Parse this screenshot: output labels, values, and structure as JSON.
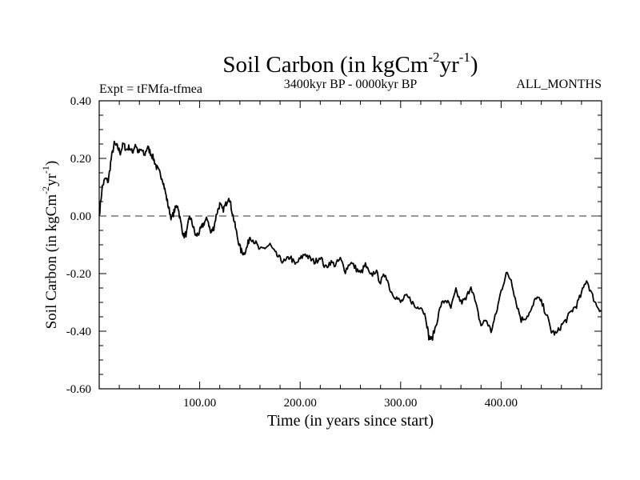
{
  "chart_data": {
    "type": "line",
    "title_main": "Soil Carbon (in kgCm",
    "title_exp1": "-2",
    "title_mid": "yr",
    "title_exp2": "-1",
    "title_end": ")",
    "subtitle_left": "Expt = tFMfa-tfmea",
    "subtitle_center": "3400kyr BP - 0000kyr BP",
    "subtitle_right": "ALL_MONTHS",
    "xlabel": "Time (in years since start)",
    "ylabel_main": "Soil Carbon (in kgCm",
    "ylabel_exp1": "-2",
    "ylabel_mid": "yr",
    "ylabel_exp2": "-1",
    "ylabel_end": ")",
    "xlim": [
      0,
      500
    ],
    "ylim": [
      -0.6,
      0.4
    ],
    "xticks": [
      100,
      200,
      300,
      400
    ],
    "xtick_labels": [
      "100.00",
      "200.00",
      "300.00",
      "400.00"
    ],
    "yticks": [
      0.4,
      0.2,
      0.0,
      -0.2,
      -0.4,
      -0.6
    ],
    "ytick_labels": [
      "0.40",
      "0.20",
      "0.00",
      "-0.20",
      "-0.40",
      "-0.60"
    ],
    "reference_line": 0.0,
    "series": [
      {
        "name": "Soil Carbon",
        "color": "#000000",
        "x": [
          0,
          3,
          6,
          9,
          12,
          15,
          18,
          21,
          24,
          27,
          30,
          33,
          36,
          39,
          42,
          45,
          48,
          51,
          54,
          57,
          60,
          63,
          66,
          69,
          72,
          75,
          78,
          81,
          84,
          87,
          90,
          93,
          96,
          99,
          102,
          105,
          108,
          111,
          114,
          117,
          120,
          123,
          126,
          129,
          132,
          135,
          138,
          141,
          144,
          147,
          150,
          155,
          160,
          165,
          170,
          175,
          180,
          185,
          190,
          195,
          200,
          205,
          210,
          215,
          220,
          225,
          230,
          235,
          240,
          245,
          250,
          255,
          260,
          265,
          270,
          275,
          280,
          285,
          290,
          295,
          300,
          305,
          310,
          315,
          320,
          325,
          328,
          331,
          335,
          340,
          345,
          350,
          355,
          360,
          365,
          370,
          375,
          380,
          385,
          390,
          395,
          400,
          405,
          410,
          415,
          420,
          425,
          430,
          435,
          440,
          445,
          450,
          455,
          460,
          465,
          470,
          475,
          480,
          485,
          490,
          495,
          500
        ],
        "y": [
          0.0,
          0.1,
          0.13,
          0.12,
          0.2,
          0.25,
          0.24,
          0.22,
          0.25,
          0.23,
          0.24,
          0.22,
          0.25,
          0.22,
          0.23,
          0.21,
          0.24,
          0.22,
          0.2,
          0.17,
          0.15,
          0.13,
          0.08,
          0.03,
          -0.01,
          0.02,
          0.04,
          -0.02,
          -0.07,
          -0.06,
          0.0,
          -0.03,
          -0.07,
          -0.06,
          -0.04,
          -0.02,
          -0.01,
          -0.06,
          -0.04,
          0.01,
          0.04,
          0.02,
          0.04,
          0.07,
          0.02,
          -0.03,
          -0.08,
          -0.12,
          -0.13,
          -0.11,
          -0.07,
          -0.09,
          -0.12,
          -0.11,
          -0.1,
          -0.13,
          -0.15,
          -0.16,
          -0.14,
          -0.17,
          -0.15,
          -0.13,
          -0.15,
          -0.16,
          -0.14,
          -0.18,
          -0.16,
          -0.17,
          -0.15,
          -0.19,
          -0.16,
          -0.18,
          -0.2,
          -0.17,
          -0.21,
          -0.19,
          -0.23,
          -0.2,
          -0.26,
          -0.28,
          -0.3,
          -0.28,
          -0.29,
          -0.32,
          -0.31,
          -0.35,
          -0.42,
          -0.43,
          -0.38,
          -0.31,
          -0.29,
          -0.32,
          -0.26,
          -0.3,
          -0.29,
          -0.24,
          -0.31,
          -0.38,
          -0.36,
          -0.4,
          -0.34,
          -0.26,
          -0.2,
          -0.22,
          -0.3,
          -0.36,
          -0.35,
          -0.33,
          -0.28,
          -0.3,
          -0.34,
          -0.4,
          -0.41,
          -0.38,
          -0.36,
          -0.33,
          -0.31,
          -0.27,
          -0.22,
          -0.27,
          -0.31,
          -0.33
        ]
      }
    ]
  }
}
